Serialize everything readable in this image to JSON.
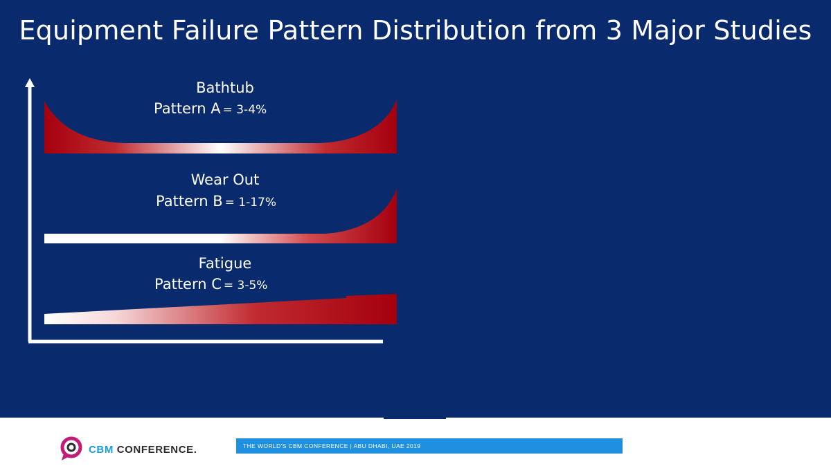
{
  "title": "Equipment Failure Pattern Distribution from 3 Major Studies",
  "patterns": [
    {
      "name": "Bathtub",
      "label": "Pattern A",
      "value": "= 3-4%"
    },
    {
      "name": "Wear Out",
      "label": "Pattern B",
      "value": "= 1-17%"
    },
    {
      "name": "Fatigue",
      "label": "Pattern C",
      "value": "= 3-5%"
    }
  ],
  "colors": {
    "background": "#0a2a6e",
    "curve_dark": "#a4000d",
    "curve_light": "#ffffff",
    "axis": "#ffffff"
  },
  "footer": {
    "brand_cbm": "CBM",
    "brand_rest": " CONFERENCE.",
    "banner": "THE WORLD'S CBM CONFERENCE  |  ABU DHABI, UAE 2019",
    "logo_icon": "speech-bubble-logo-icon"
  }
}
